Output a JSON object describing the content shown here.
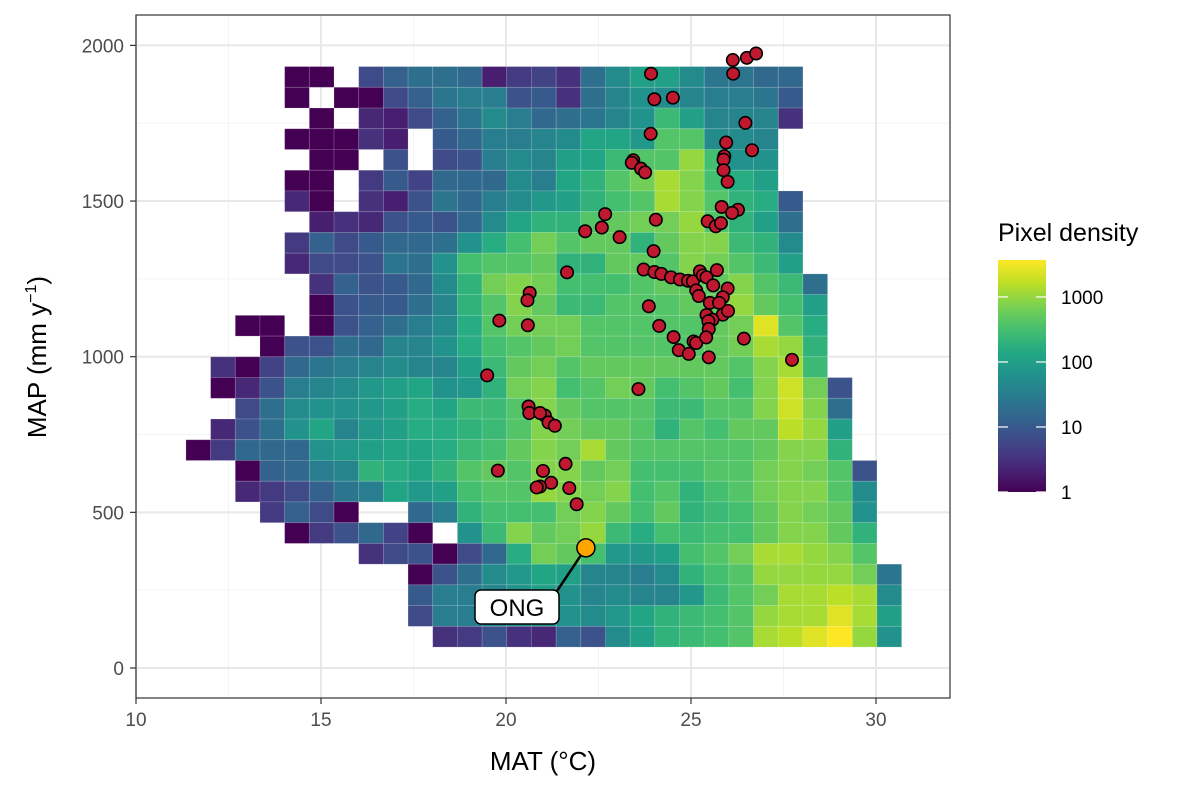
{
  "chart_data": {
    "type": "heatmap",
    "xlabel": "MAT (°C)",
    "ylabel_main": "MAP (mm y",
    "ylabel_sup": "−1",
    "ylabel_close": ")",
    "xlim": [
      10,
      32
    ],
    "ylim": [
      -90,
      2100
    ],
    "x_ticks": [
      10,
      15,
      20,
      25,
      30
    ],
    "y_ticks": [
      0,
      500,
      1000,
      1500,
      2000
    ],
    "grid": true,
    "legend": {
      "title": "Pixel density",
      "position": "right",
      "scale": "log10",
      "range": [
        1,
        3700
      ],
      "tick_values": [
        1,
        10,
        100,
        1000
      ],
      "tick_labels": [
        "1",
        "10",
        "100",
        "1000"
      ],
      "colormap": "viridis"
    },
    "heatmap": {
      "x_bin_start": 11.35,
      "x_bin_width": 0.667,
      "y_bin_top": 1932,
      "y_bin_height": 66.6,
      "row_order": "top-to-bottom",
      "log10_pixel_density": [
        [
          null,
          null,
          null,
          null,
          0,
          0,
          null,
          0.8,
          1.1,
          1.3,
          1.3,
          1.2,
          0.3,
          0.6,
          0.7,
          0.5,
          1.3,
          1.7,
          2.0,
          2.0,
          1.7,
          1.4,
          1.4,
          1.2,
          1.2,
          null,
          null,
          null,
          null
        ],
        [
          null,
          null,
          null,
          null,
          0,
          null,
          0,
          0,
          0.8,
          1.1,
          1.4,
          1.5,
          1.5,
          0.9,
          1.0,
          0.5,
          1.3,
          1.6,
          1.8,
          1.7,
          1.6,
          1.5,
          1.5,
          1.4,
          1.0,
          null,
          null,
          null,
          null
        ],
        [
          null,
          null,
          null,
          null,
          null,
          0,
          null,
          0.4,
          0.3,
          0.8,
          1.1,
          1.4,
          1.7,
          1.5,
          1.2,
          1.3,
          1.4,
          1.6,
          1.8,
          2.4,
          2.0,
          1.6,
          1.6,
          1.6,
          0.5,
          null,
          null,
          null,
          null
        ],
        [
          null,
          null,
          null,
          null,
          0,
          0,
          0,
          0.5,
          0.3,
          null,
          1.0,
          1.2,
          1.5,
          1.5,
          1.6,
          1.7,
          2.1,
          2.1,
          1.9,
          2.6,
          2.6,
          1.7,
          1.7,
          1.6,
          null,
          null,
          null,
          null,
          null
        ],
        [
          null,
          null,
          null,
          null,
          null,
          0,
          0,
          null,
          0.9,
          null,
          0.8,
          0.9,
          1.5,
          1.7,
          1.6,
          2.0,
          2.1,
          2.4,
          2.6,
          2.6,
          3.0,
          2.5,
          1.8,
          1.8,
          null,
          null,
          null,
          null,
          null
        ],
        [
          null,
          null,
          null,
          null,
          0,
          0,
          null,
          0.6,
          1.0,
          0.7,
          1.2,
          1.2,
          1.2,
          1.7,
          1.5,
          2.1,
          2.3,
          2.6,
          2.8,
          3.1,
          2.9,
          2.5,
          2.2,
          2.0,
          null,
          null,
          null,
          null,
          null
        ],
        [
          null,
          null,
          null,
          null,
          0.4,
          0,
          null,
          0.5,
          0.3,
          0.9,
          1.4,
          1.2,
          1.5,
          1.7,
          1.9,
          2.0,
          2.3,
          2.5,
          2.6,
          3.1,
          2.9,
          2.6,
          2.3,
          2.2,
          1.0,
          null,
          null,
          null,
          null
        ],
        [
          null,
          null,
          null,
          null,
          null,
          0.3,
          0.5,
          0.4,
          0.9,
          1.0,
          0.9,
          1.2,
          1.7,
          2.1,
          2.3,
          2.3,
          2.6,
          2.7,
          2.8,
          2.8,
          3.0,
          2.6,
          2.3,
          2.0,
          1.3,
          null,
          null,
          null,
          null
        ],
        [
          null,
          null,
          null,
          null,
          0.6,
          1.1,
          0.8,
          1.0,
          1.2,
          1.2,
          1.3,
          1.8,
          2.2,
          2.5,
          2.8,
          2.6,
          2.7,
          2.7,
          2.3,
          2.7,
          2.9,
          2.9,
          2.4,
          2.3,
          1.7,
          null,
          null,
          null,
          null
        ],
        [
          null,
          null,
          null,
          null,
          0.4,
          0.8,
          0.8,
          0.9,
          1.4,
          1.3,
          1.8,
          2.5,
          2.6,
          2.6,
          2.7,
          2.3,
          2.3,
          2.7,
          2.7,
          2.6,
          2.9,
          2.8,
          2.6,
          2.4,
          2.0,
          null,
          null,
          null,
          null
        ],
        [
          null,
          null,
          null,
          null,
          null,
          0.5,
          1.1,
          0.9,
          1.0,
          1.2,
          1.7,
          2.3,
          2.8,
          2.9,
          2.8,
          2.5,
          2.5,
          2.5,
          2.6,
          2.7,
          2.7,
          2.7,
          2.9,
          2.6,
          2.4,
          1.3,
          null,
          null,
          null
        ],
        [
          null,
          null,
          null,
          null,
          null,
          0,
          0.9,
          1.0,
          1.0,
          1.3,
          1.6,
          2.3,
          2.6,
          2.9,
          2.7,
          2.4,
          2.4,
          2.6,
          2.6,
          2.6,
          2.7,
          2.7,
          3.0,
          2.7,
          2.5,
          2.0,
          null,
          null,
          null
        ],
        [
          null,
          null,
          0,
          0,
          null,
          0,
          0.9,
          1.1,
          1.3,
          1.5,
          1.7,
          2.2,
          2.6,
          2.8,
          2.8,
          2.8,
          2.6,
          2.6,
          2.6,
          2.6,
          2.6,
          2.7,
          2.8,
          3.4,
          2.6,
          2.2,
          null,
          null,
          null
        ],
        [
          null,
          null,
          null,
          0,
          0.9,
          0.9,
          1.3,
          1.2,
          1.6,
          1.6,
          1.8,
          2.2,
          2.5,
          2.6,
          2.7,
          2.8,
          2.6,
          2.6,
          2.6,
          2.6,
          2.6,
          2.7,
          2.8,
          3.1,
          3.0,
          2.3,
          null,
          null,
          null
        ],
        [
          null,
          0.5,
          0,
          0.7,
          1.2,
          1.4,
          1.5,
          1.6,
          1.7,
          1.6,
          1.6,
          2.0,
          2.4,
          2.7,
          2.8,
          2.6,
          2.7,
          2.7,
          2.7,
          2.7,
          2.7,
          2.7,
          2.6,
          2.9,
          3.1,
          2.4,
          null,
          null,
          null
        ],
        [
          null,
          0,
          0.4,
          0.9,
          1.5,
          1.6,
          1.7,
          1.9,
          2.0,
          2.1,
          1.8,
          1.9,
          2.3,
          2.8,
          2.9,
          2.5,
          2.6,
          2.8,
          2.7,
          2.5,
          2.6,
          2.7,
          2.5,
          2.9,
          3.3,
          2.8,
          0.9,
          null,
          null
        ],
        [
          null,
          null,
          0.8,
          1.3,
          1.7,
          1.8,
          1.8,
          1.9,
          2.0,
          2.2,
          2.1,
          2.4,
          2.4,
          2.6,
          2.9,
          2.7,
          2.6,
          2.6,
          2.6,
          2.4,
          2.4,
          2.6,
          2.6,
          2.9,
          3.3,
          2.9,
          1.3,
          null,
          null
        ],
        [
          null,
          0.4,
          0.9,
          1.3,
          1.8,
          2.1,
          1.6,
          1.9,
          2.0,
          2.2,
          2.2,
          2.3,
          2.4,
          2.6,
          2.9,
          2.8,
          2.7,
          2.7,
          2.6,
          2.3,
          2.6,
          2.5,
          2.7,
          2.7,
          3.2,
          3.0,
          2.0,
          null,
          null
        ],
        [
          0,
          0.6,
          1.2,
          1.2,
          1.2,
          1.8,
          1.9,
          2.0,
          2.1,
          2.1,
          2.2,
          2.4,
          2.5,
          2.7,
          2.9,
          2.8,
          3.1,
          2.7,
          2.6,
          2.6,
          2.6,
          2.6,
          2.6,
          2.7,
          2.9,
          2.9,
          2.3,
          null,
          null
        ],
        [
          null,
          null,
          0,
          1.1,
          1.2,
          1.5,
          1.6,
          2.3,
          2.2,
          2.1,
          2.3,
          2.6,
          2.7,
          2.6,
          2.9,
          2.9,
          2.7,
          2.8,
          2.5,
          2.5,
          2.5,
          2.6,
          2.6,
          2.8,
          2.9,
          2.8,
          2.6,
          0.9,
          null
        ],
        [
          null,
          null,
          0.4,
          0.6,
          0.8,
          1.1,
          1.4,
          1.5,
          2.1,
          1.9,
          2.0,
          2.5,
          2.6,
          2.6,
          3.0,
          2.9,
          2.8,
          2.9,
          2.5,
          2.6,
          2.3,
          2.5,
          2.6,
          2.8,
          2.9,
          2.9,
          2.6,
          1.7,
          null
        ],
        [
          null,
          null,
          null,
          0.6,
          1.1,
          0.8,
          0,
          null,
          null,
          1.2,
          1.5,
          2.3,
          2.5,
          2.5,
          2.5,
          2.8,
          2.9,
          2.7,
          2.5,
          2.7,
          2.3,
          2.4,
          2.5,
          2.7,
          2.9,
          2.8,
          2.7,
          1.8,
          null
        ],
        [
          null,
          null,
          null,
          null,
          0,
          0.6,
          0.9,
          1.2,
          0.7,
          0,
          null,
          1.8,
          2.4,
          2.9,
          2.7,
          2.8,
          3.0,
          2.4,
          2.2,
          2.5,
          2.4,
          2.5,
          2.5,
          2.7,
          2.9,
          2.9,
          2.7,
          2.3,
          null
        ],
        [
          null,
          null,
          null,
          null,
          null,
          null,
          null,
          0.5,
          0.8,
          0.9,
          0,
          0.8,
          1.2,
          2.2,
          2.8,
          2.7,
          2.5,
          1.9,
          1.9,
          2.0,
          2.5,
          2.6,
          2.8,
          3.1,
          3.1,
          3.0,
          2.9,
          2.6,
          null
        ],
        [
          null,
          null,
          null,
          null,
          null,
          null,
          null,
          null,
          null,
          0,
          0.9,
          1.3,
          1.7,
          1.9,
          2.1,
          2.0,
          1.6,
          1.6,
          1.5,
          1.7,
          2.3,
          2.5,
          2.6,
          3.0,
          3.0,
          3.0,
          3.0,
          2.8,
          1.4
        ],
        [
          null,
          null,
          null,
          null,
          null,
          null,
          null,
          null,
          null,
          1.0,
          1.5,
          1.5,
          1.6,
          1.8,
          2.0,
          1.8,
          1.6,
          1.7,
          1.6,
          1.6,
          1.9,
          2.4,
          2.6,
          2.8,
          3.1,
          3.1,
          3.2,
          3.1,
          1.7
        ],
        [
          null,
          null,
          null,
          null,
          null,
          null,
          null,
          null,
          null,
          0.8,
          1.5,
          1.5,
          1.6,
          1.8,
          1.9,
          1.8,
          1.7,
          1.9,
          2.1,
          2.3,
          2.4,
          2.5,
          2.6,
          3.0,
          3.1,
          3.1,
          3.4,
          3.1,
          2.0
        ],
        [
          null,
          null,
          null,
          null,
          null,
          null,
          null,
          null,
          null,
          null,
          0.5,
          0.6,
          0.9,
          0.5,
          0.4,
          1.1,
          0.9,
          1.7,
          2.0,
          2.3,
          2.4,
          2.5,
          2.6,
          3.1,
          3.2,
          3.4,
          3.6,
          3.0,
          1.8
        ]
      ]
    },
    "points": {
      "fill": "#c0182f",
      "stroke": "#000000",
      "xy": [
        [
          26.13,
          1953
        ],
        [
          26.51,
          1960
        ],
        [
          26.76,
          1974
        ],
        [
          26.14,
          1909
        ],
        [
          23.92,
          1909
        ],
        [
          24.01,
          1827
        ],
        [
          24.51,
          1832
        ],
        [
          26.47,
          1751
        ],
        [
          23.91,
          1716
        ],
        [
          25.95,
          1688
        ],
        [
          26.65,
          1663
        ],
        [
          25.9,
          1644
        ],
        [
          25.88,
          1633
        ],
        [
          25.88,
          1599
        ],
        [
          25.99,
          1562
        ],
        [
          23.44,
          1631
        ],
        [
          23.4,
          1623
        ],
        [
          23.65,
          1604
        ],
        [
          23.76,
          1592
        ],
        [
          25.83,
          1481
        ],
        [
          26.27,
          1472
        ],
        [
          26.11,
          1462
        ],
        [
          22.68,
          1458
        ],
        [
          24.05,
          1440
        ],
        [
          25.45,
          1435
        ],
        [
          25.67,
          1419
        ],
        [
          25.81,
          1429
        ],
        [
          22.59,
          1415
        ],
        [
          22.14,
          1403
        ],
        [
          23.07,
          1384
        ],
        [
          23.99,
          1339
        ],
        [
          21.65,
          1271
        ],
        [
          23.72,
          1280
        ],
        [
          24.01,
          1272
        ],
        [
          24.2,
          1266
        ],
        [
          24.46,
          1255
        ],
        [
          24.7,
          1248
        ],
        [
          24.92,
          1244
        ],
        [
          25.05,
          1242
        ],
        [
          25.24,
          1274
        ],
        [
          25.32,
          1261
        ],
        [
          25.7,
          1278
        ],
        [
          25.42,
          1255
        ],
        [
          25.6,
          1229
        ],
        [
          25.14,
          1213
        ],
        [
          25.21,
          1195
        ],
        [
          25.99,
          1219
        ],
        [
          25.86,
          1191
        ],
        [
          25.51,
          1173
        ],
        [
          25.76,
          1173
        ],
        [
          23.86,
          1162
        ],
        [
          25.42,
          1134
        ],
        [
          25.86,
          1135
        ],
        [
          26.0,
          1147
        ],
        [
          25.58,
          1119
        ],
        [
          25.47,
          1114
        ],
        [
          24.14,
          1099
        ],
        [
          25.48,
          1089
        ],
        [
          24.53,
          1063
        ],
        [
          25.07,
          1049
        ],
        [
          25.14,
          1044
        ],
        [
          25.41,
          1062
        ],
        [
          26.43,
          1058
        ],
        [
          24.67,
          1021
        ],
        [
          24.94,
          1009
        ],
        [
          25.48,
          998
        ],
        [
          27.73,
          990
        ],
        [
          23.58,
          896
        ],
        [
          21.05,
          811
        ],
        [
          21.15,
          789
        ],
        [
          21.32,
          778
        ],
        [
          21.0,
          633
        ],
        [
          21.61,
          656
        ],
        [
          21.22,
          595
        ],
        [
          20.92,
          583
        ],
        [
          21.71,
          578
        ],
        [
          21.91,
          526
        ],
        [
          19.49,
          940
        ],
        [
          20.61,
          840
        ],
        [
          20.63,
          819
        ],
        [
          20.92,
          819
        ],
        [
          19.78,
          634
        ],
        [
          20.83,
          580
        ],
        [
          20.64,
          1205
        ],
        [
          20.58,
          1181
        ],
        [
          19.82,
          1116
        ],
        [
          20.59,
          1101
        ]
      ]
    },
    "highlight": {
      "label": "ONG",
      "x": 22.16,
      "y": 386,
      "fill": "#ffa500"
    }
  }
}
